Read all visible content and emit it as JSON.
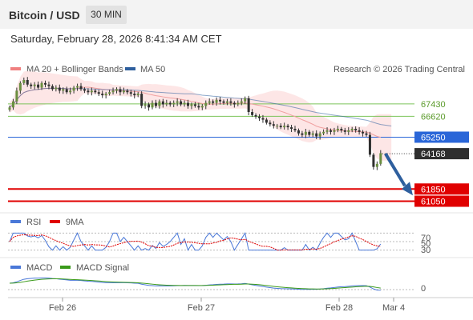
{
  "header": {
    "title": "Bitcoin / USD",
    "timeframe": "30 MIN",
    "datetime": "Saturday, February 28, 2026 8:41:34 AM CET"
  },
  "legend": {
    "bollinger_label": "MA 20 + Bollinger Bands",
    "ma50_label": "MA 50",
    "credit": "Research © 2026 Trading Central",
    "bollinger_color": "#f08080",
    "ma50_color": "#2e5f9e"
  },
  "rsi_legend": {
    "rsi_label": "RSI",
    "ma_label": "9MA",
    "rsi_color": "#4a78d8",
    "ma_color": "#e00000"
  },
  "macd_legend": {
    "macd_label": "MACD",
    "signal_label": "MACD Signal",
    "macd_color": "#4a78d8",
    "signal_color": "#3a9a1a"
  },
  "chart_data": {
    "type": "candlestick",
    "x_ticks": [
      "Feb 26",
      "Feb 27",
      "Feb 28",
      "Mar 4"
    ],
    "ylim": [
      60500,
      69000
    ],
    "levels": [
      {
        "value": 67430,
        "label": "67430",
        "color": "#7cc45a",
        "kind": "resistance"
      },
      {
        "value": 66620,
        "label": "66620",
        "color": "#7cc45a",
        "kind": "resistance"
      },
      {
        "value": 65250,
        "label": "65250",
        "color": "#2a66d8",
        "kind": "pivot"
      },
      {
        "value": 61850,
        "label": "61850",
        "color": "#e00000",
        "kind": "support"
      },
      {
        "value": 61050,
        "label": "61050",
        "color": "#e00000",
        "kind": "support"
      }
    ],
    "last_price": {
      "value": 64168,
      "label": "64168"
    },
    "close_series": [
      67200,
      67600,
      68300,
      68800,
      69000,
      68700,
      68600,
      68700,
      68500,
      68800,
      68700,
      68600,
      68400,
      68500,
      68300,
      68400,
      68200,
      68300,
      68500,
      68600,
      68400,
      68300,
      68200,
      68300,
      68200,
      68100,
      68000,
      68100,
      68200,
      68300,
      68400,
      68200,
      68300,
      68200,
      68100,
      68000,
      68100,
      67300,
      67400,
      67200,
      67500,
      67300,
      67600,
      67400,
      67500,
      67400,
      67500,
      67600,
      67400,
      67500,
      67300,
      67400,
      67300,
      67200,
      67300,
      67500,
      67600,
      67500,
      67700,
      67600,
      67500,
      67600,
      67500,
      67400,
      67500,
      67600,
      67800,
      66900,
      66700,
      66600,
      66500,
      66400,
      66200,
      66100,
      66000,
      66000,
      65900,
      66000,
      65900,
      65800,
      65700,
      65500,
      65400,
      65600,
      65400,
      65500,
      65300,
      65500,
      65600,
      65700,
      65600,
      65700,
      65800,
      65700,
      65600,
      65700,
      65800,
      65700,
      65600,
      65500,
      65400,
      64100,
      63300,
      63500,
      64200
    ],
    "rsi": {
      "levels": [
        70,
        50,
        30
      ],
      "tick_labels": [
        "70",
        "50",
        "30"
      ]
    },
    "macd": {
      "levels": [
        0
      ],
      "tick_labels": [
        "0"
      ]
    },
    "forecast": {
      "direction": "down",
      "from": 64168,
      "to": 61850
    }
  }
}
